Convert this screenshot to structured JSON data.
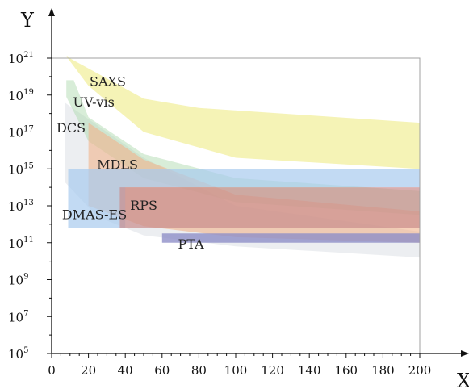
{
  "chart_data": {
    "type": "area",
    "xlabel": "X",
    "ylabel": "Y",
    "xlim": [
      0,
      200
    ],
    "ylim_log10": [
      5,
      21
    ],
    "y_scale": "log",
    "grid": false,
    "x_ticks": [
      0,
      20,
      40,
      60,
      80,
      100,
      120,
      140,
      160,
      180,
      200
    ],
    "y_ticks": [
      {
        "exp": 5,
        "label_base": "10",
        "label_exp": "5"
      },
      {
        "exp": 7,
        "label_base": "10",
        "label_exp": "7"
      },
      {
        "exp": 9,
        "label_base": "10",
        "label_exp": "9"
      },
      {
        "exp": 11,
        "label_base": "10",
        "label_exp": "11"
      },
      {
        "exp": 13,
        "label_base": "10",
        "label_exp": "13"
      },
      {
        "exp": 15,
        "label_base": "10",
        "label_exp": "15"
      },
      {
        "exp": 17,
        "label_base": "10",
        "label_exp": "17"
      },
      {
        "exp": 19,
        "label_base": "10",
        "label_exp": "19"
      },
      {
        "exp": 21,
        "label_base": "10",
        "label_exp": "21"
      }
    ],
    "regions": [
      {
        "name": "DCS",
        "color": "#dfe2e8",
        "opacity": 0.6,
        "label_at": [
          0,
          17.2
        ],
        "upper": [
          [
            7,
            18.6
          ],
          [
            50,
            15.6
          ],
          [
            100,
            13.0
          ],
          [
            200,
            11.6
          ]
        ],
        "lower": [
          [
            200,
            10.2
          ],
          [
            100,
            10.8
          ],
          [
            50,
            11.4
          ],
          [
            25,
            12.4
          ],
          [
            7,
            14.3
          ]
        ]
      },
      {
        "name": "UV-vis",
        "color": "#a9d8a9",
        "opacity": 0.45,
        "label_at": [
          9,
          18.6
        ],
        "upper": [
          [
            8,
            19.8
          ],
          [
            12,
            19.8
          ],
          [
            20,
            17.8
          ],
          [
            50,
            15.8
          ],
          [
            100,
            14.5
          ],
          [
            200,
            13.8
          ]
        ],
        "lower": [
          [
            200,
            12.5
          ],
          [
            100,
            13.2
          ],
          [
            50,
            14.5
          ],
          [
            20,
            16.5
          ],
          [
            8,
            18.9
          ]
        ]
      },
      {
        "name": "MDLS",
        "color": "#f2b48c",
        "opacity": 0.6,
        "label_at": [
          22,
          15.2
        ],
        "upper": [
          [
            20,
            17.5
          ],
          [
            50,
            15.5
          ],
          [
            100,
            13.6
          ],
          [
            200,
            12.7
          ]
        ],
        "lower": [
          [
            200,
            11.0
          ],
          [
            100,
            11.3
          ],
          [
            50,
            11.9
          ],
          [
            20,
            13.0
          ]
        ]
      },
      {
        "name": "SAXS",
        "color": "#f2ef9e",
        "opacity": 0.75,
        "label_at": [
          18,
          19.7
        ],
        "upper": [
          [
            8,
            21.1
          ],
          [
            50,
            18.8
          ],
          [
            80,
            18.3
          ],
          [
            200,
            17.5
          ]
        ],
        "lower": [
          [
            200,
            15.0
          ],
          [
            100,
            15.6
          ],
          [
            50,
            17.0
          ],
          [
            20,
            19.5
          ]
        ]
      },
      {
        "name": "DMAS-ES",
        "color": "#a8cbee",
        "opacity": 0.7,
        "label_at": [
          3,
          12.5
        ],
        "upper": [
          [
            9,
            15.0
          ],
          [
            200,
            15.0
          ]
        ],
        "lower": [
          [
            200,
            14.0
          ],
          [
            40,
            14.0
          ],
          [
            40,
            11.8
          ],
          [
            9,
            11.8
          ]
        ]
      },
      {
        "name": "RPS",
        "color": "#c98b8b",
        "opacity": 0.7,
        "label_at": [
          40,
          13.0
        ],
        "upper": [
          [
            37,
            14.0
          ],
          [
            200,
            14.0
          ]
        ],
        "lower": [
          [
            200,
            11.8
          ],
          [
            37,
            11.8
          ]
        ]
      },
      {
        "name": "PTA",
        "color": "#8f8fc8",
        "opacity": 0.8,
        "label_at": [
          66,
          10.9
        ],
        "upper": [
          [
            60,
            11.5
          ],
          [
            200,
            11.5
          ]
        ],
        "lower": [
          [
            200,
            11.0
          ],
          [
            60,
            11.0
          ]
        ]
      }
    ]
  },
  "frame_color": "#a0a0a0"
}
